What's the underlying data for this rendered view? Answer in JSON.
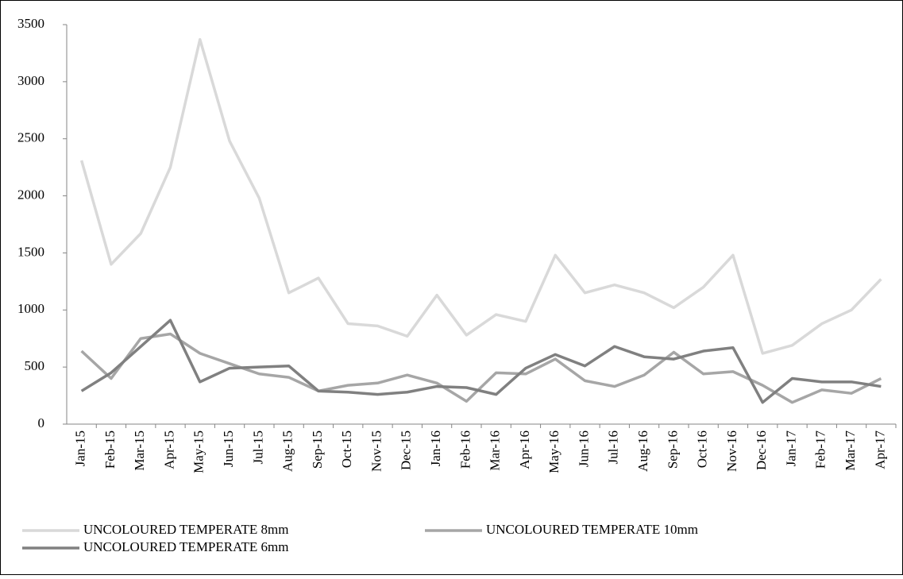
{
  "chart_data": {
    "type": "line",
    "categories": [
      "Jan-15",
      "Feb-15",
      "Mar-15",
      "Apr-15",
      "May-15",
      "Jun-15",
      "Jul-15",
      "Aug-15",
      "Sep-15",
      "Oct-15",
      "Nov-15",
      "Dec-15",
      "Jan-16",
      "Feb-16",
      "Mar-16",
      "Apr-16",
      "May-16",
      "Jun-16",
      "Jul-16",
      "Aug-16",
      "Sep-16",
      "Oct-16",
      "Nov-16",
      "Dec-16",
      "Jan-17",
      "Feb-17",
      "Mar-17",
      "Apr-17"
    ],
    "series": [
      {
        "name": "UNCOLOURED TEMPERATE 8mm",
        "color": "#d9d9d9",
        "values": [
          2310,
          1400,
          1670,
          2250,
          3370,
          2480,
          1980,
          1150,
          1280,
          880,
          860,
          770,
          1130,
          780,
          960,
          900,
          1480,
          1150,
          1220,
          1150,
          1020,
          1200,
          1480,
          620,
          690,
          880,
          1000,
          1270
        ]
      },
      {
        "name": "UNCOLOURED TEMPERATE 10mm",
        "color": "#a6a6a6",
        "values": [
          640,
          400,
          750,
          790,
          620,
          530,
          440,
          410,
          290,
          340,
          360,
          430,
          360,
          200,
          450,
          440,
          570,
          380,
          330,
          430,
          630,
          440,
          460,
          340,
          190,
          300,
          270,
          400
        ]
      },
      {
        "name": "UNCOLOURED TEMPERATE 6mm",
        "color": "#808080",
        "values": [
          290,
          450,
          680,
          910,
          370,
          490,
          500,
          510,
          290,
          280,
          260,
          280,
          330,
          320,
          260,
          490,
          610,
          510,
          680,
          590,
          570,
          640,
          670,
          190,
          400,
          370,
          370,
          330
        ]
      }
    ],
    "ylim": [
      0,
      3500
    ],
    "yticks": [
      0,
      500,
      1000,
      1500,
      2000,
      2500,
      3000,
      3500
    ]
  }
}
